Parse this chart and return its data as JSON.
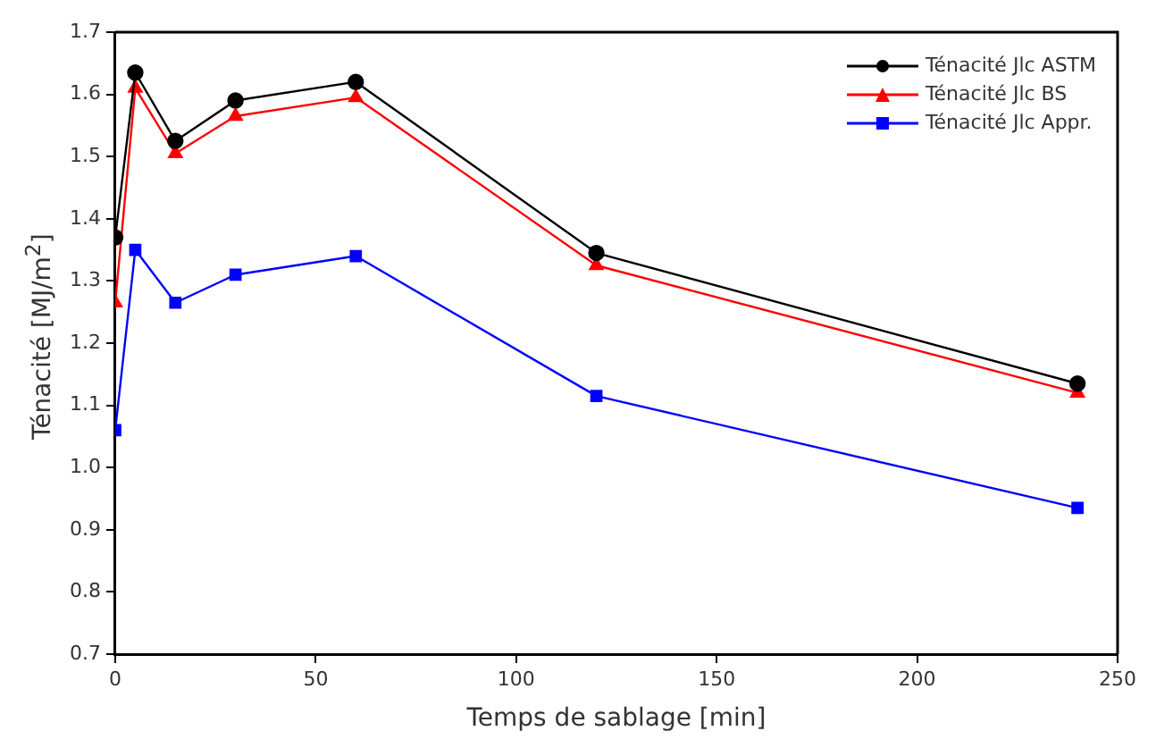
{
  "chart_data": {
    "type": "line",
    "xlabel": "Temps de sablage [min]",
    "ylabel": "Ténacité [MJ/m$^{2}$]",
    "x": [
      0,
      5,
      15,
      30,
      60,
      120,
      240
    ],
    "xlim": [
      0,
      250
    ],
    "xticks": [
      0,
      50,
      100,
      150,
      200,
      250
    ],
    "ylim": [
      0.7,
      1.7
    ],
    "yticks": [
      0.7,
      0.8,
      0.9,
      {
        "value": 1,
        "label": "1.0"
      },
      1.1,
      1.2,
      1.3,
      1.4,
      1.5,
      1.6,
      1.7
    ],
    "grid": false,
    "legend": "top right",
    "series": [
      {
        "name": "Ténacité Jlc ASTM",
        "color": "#000000",
        "marker": "circle",
        "values": [
          1.37,
          1.635,
          1.525,
          1.59,
          1.62,
          1.345,
          1.135
        ]
      },
      {
        "name": "Ténacité Jlc BS",
        "color": "#ff0000",
        "marker": "triangle",
        "values": [
          1.265,
          1.61,
          1.505,
          1.565,
          1.595,
          1.325,
          1.12
        ]
      },
      {
        "name": "Ténacité Jlc Appr.",
        "color": "#0000ff",
        "marker": "square",
        "values": [
          1.06,
          1.35,
          1.265,
          1.31,
          1.34,
          1.115,
          0.935
        ]
      }
    ]
  }
}
